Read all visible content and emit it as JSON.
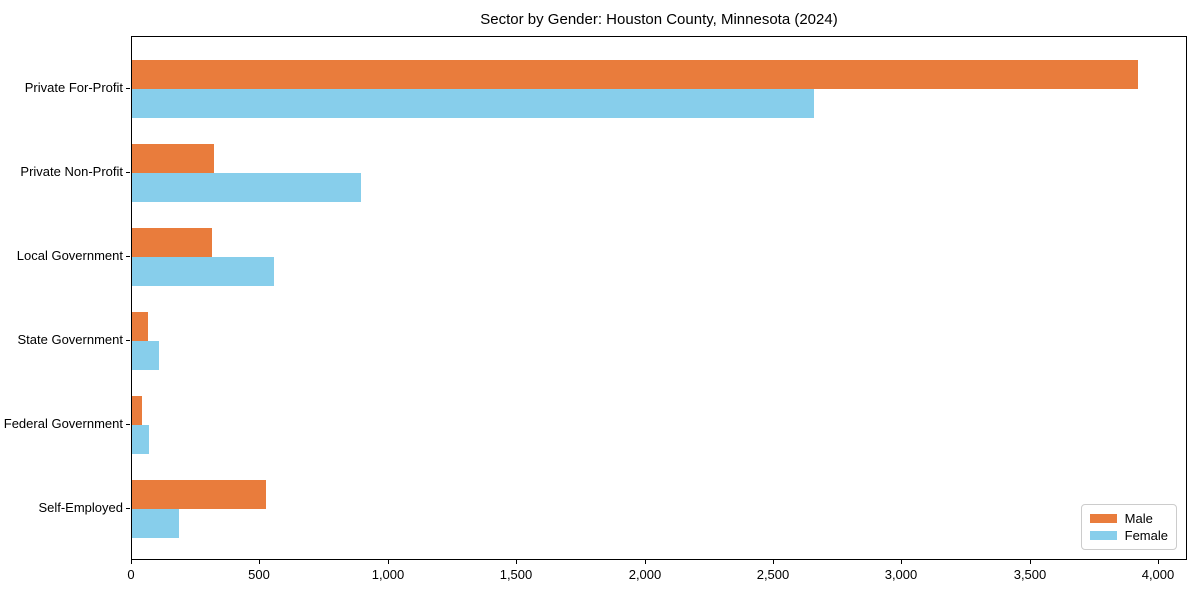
{
  "chart_data": {
    "type": "bar",
    "orientation": "horizontal",
    "title": "Sector by Gender: Houston County, Minnesota (2024)",
    "categories": [
      "Private For-Profit",
      "Private Non-Profit",
      "Local Government",
      "State Government",
      "Federal Government",
      "Self-Employed"
    ],
    "series": [
      {
        "name": "Male",
        "color": "#e97c3c",
        "values": [
          3910,
          320,
          311,
          62,
          39,
          521
        ]
      },
      {
        "name": "Female",
        "color": "#87ceeb",
        "values": [
          2650,
          890,
          551,
          106,
          65,
          184
        ]
      }
    ],
    "xlim": [
      0,
      4105
    ],
    "x_ticks": [
      0,
      500,
      1000,
      1500,
      2000,
      2500,
      3000,
      3500,
      4000
    ],
    "x_tick_labels": [
      "0",
      "500",
      "1,000",
      "1,500",
      "2,000",
      "2,500",
      "3,000",
      "3,500",
      "4,000"
    ],
    "xlabel": "",
    "ylabel": "",
    "grid": false,
    "legend": {
      "position": "lower right"
    },
    "background_color": "#ffffff",
    "axis_color": "#000000"
  }
}
